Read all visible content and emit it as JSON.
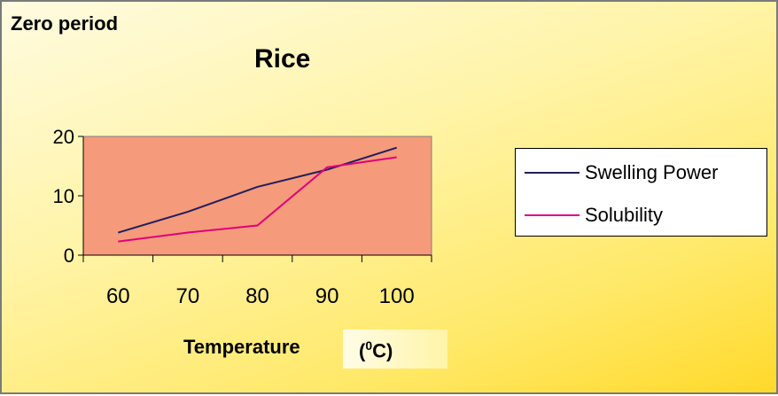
{
  "chart_data": {
    "type": "line",
    "corner_title": "Zero period",
    "title": "Rice",
    "xlabel": "Temperature",
    "xlabel_unit_open": "(",
    "xlabel_unit_sup": "0",
    "xlabel_unit_close": "C)",
    "categories": [
      "60",
      "70",
      "80",
      "90",
      "100"
    ],
    "ylim": [
      0,
      20
    ],
    "yticks": [
      "0",
      "10",
      "20"
    ],
    "grid": false,
    "plot_background": "#f59a7b",
    "legend_position": "right",
    "series": [
      {
        "name": "Swelling Power",
        "color": "#1f1f5c",
        "values": [
          3.8,
          7.3,
          11.5,
          14.4,
          18.1
        ]
      },
      {
        "name": "Solubility",
        "color": "#e0007a",
        "values": [
          2.3,
          3.8,
          5.0,
          14.8,
          16.5
        ]
      }
    ]
  }
}
